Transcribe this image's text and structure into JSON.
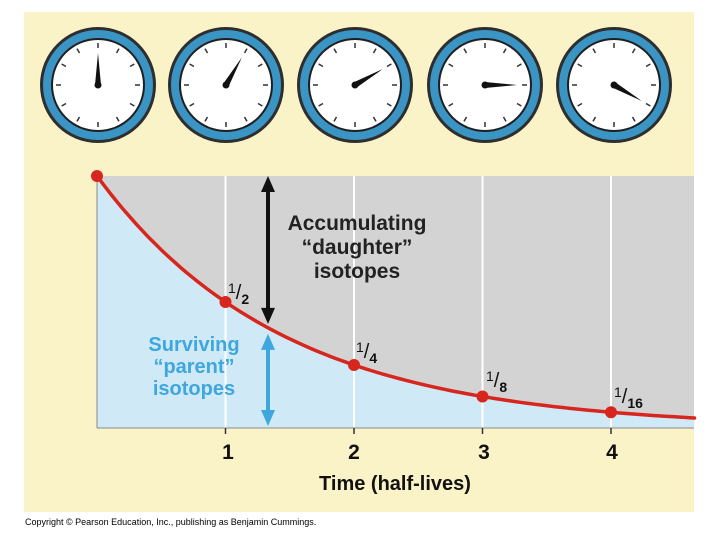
{
  "chart_data": {
    "type": "line",
    "x": [
      0,
      1,
      2,
      3,
      4,
      4.65
    ],
    "series": [
      {
        "values": [
          1,
          0.5,
          0.25,
          0.125,
          0.0625,
          0.04
        ]
      }
    ],
    "xlabel": "Time (half-lives)",
    "xticks": [
      "1",
      "2",
      "3",
      "4"
    ],
    "xlim": [
      0,
      4.65
    ],
    "ylim": [
      0,
      1
    ],
    "point_labels": [
      {
        "x": 1,
        "num": "1",
        "den": "2"
      },
      {
        "x": 2,
        "num": "1",
        "den": "4"
      },
      {
        "x": 3,
        "num": "1",
        "den": "8"
      },
      {
        "x": 4,
        "num": "1",
        "den": "16"
      }
    ],
    "annotations": {
      "daughter": [
        "Accumulating",
        "“daughter”",
        "isotopes"
      ],
      "parent": [
        "Surviving",
        "“parent”",
        "isotopes"
      ]
    },
    "clock_hand_fraction": [
      0,
      0.083,
      0.167,
      0.25,
      0.333
    ],
    "colors": {
      "curve": "#d7261e",
      "parent_fill": "#cfe9f7",
      "daughter_fill": "#d3d3d3",
      "parent_arrow": "#3ea7de",
      "background": "#fbf3c8",
      "clock_rim": "#3a94c4"
    },
    "grid": true
  },
  "footer": "Copyright © Pearson Education, Inc., publishing as Benjamin Cummings."
}
